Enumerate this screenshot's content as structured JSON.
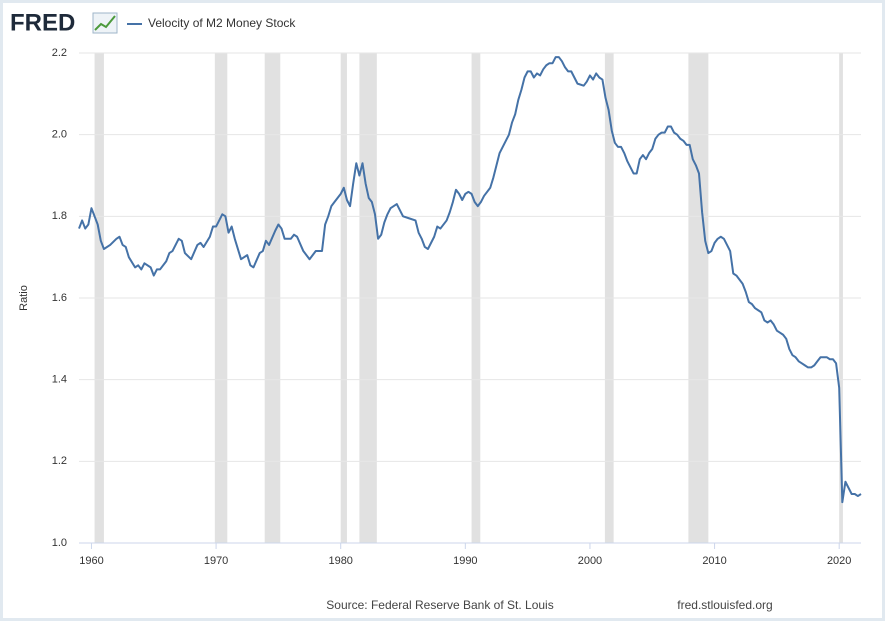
{
  "logo": "FRED",
  "chart_data": {
    "type": "line",
    "x": [
      1959.0,
      1959.25,
      1959.5,
      1959.75,
      1960.0,
      1960.25,
      1960.5,
      1960.75,
      1961.0,
      1961.5,
      1962.0,
      1962.25,
      1962.5,
      1962.75,
      1963.0,
      1963.5,
      1963.75,
      1964.0,
      1964.25,
      1964.75,
      1965.0,
      1965.25,
      1965.5,
      1966.0,
      1966.25,
      1966.5,
      1966.75,
      1967.0,
      1967.25,
      1967.5,
      1968.0,
      1968.5,
      1968.75,
      1969.0,
      1969.5,
      1969.75,
      1970.0,
      1970.25,
      1970.5,
      1970.75,
      1971.0,
      1971.25,
      1971.5,
      1972.0,
      1972.5,
      1972.75,
      1973.0,
      1973.5,
      1973.75,
      1974.0,
      1974.25,
      1974.75,
      1975.0,
      1975.25,
      1975.5,
      1976.0,
      1976.25,
      1976.5,
      1977.0,
      1977.5,
      1977.75,
      1978.0,
      1978.5,
      1978.75,
      1979.0,
      1979.25,
      1979.5,
      1980.0,
      1980.25,
      1980.5,
      1980.75,
      1981.0,
      1981.25,
      1981.5,
      1981.75,
      1982.0,
      1982.25,
      1982.5,
      1982.75,
      1983.0,
      1983.25,
      1983.5,
      1983.75,
      1984.0,
      1984.5,
      1984.75,
      1985.0,
      1985.5,
      1986.0,
      1986.25,
      1986.5,
      1986.75,
      1987.0,
      1987.5,
      1987.75,
      1988.0,
      1988.5,
      1988.75,
      1989.0,
      1989.25,
      1989.5,
      1989.75,
      1990.0,
      1990.25,
      1990.5,
      1990.75,
      1991.0,
      1991.25,
      1991.5,
      1992.0,
      1992.25,
      1992.5,
      1992.75,
      1993.0,
      1993.25,
      1993.5,
      1993.75,
      1994.0,
      1994.25,
      1994.5,
      1994.75,
      1995.0,
      1995.25,
      1995.5,
      1995.75,
      1996.0,
      1996.25,
      1996.5,
      1996.75,
      1997.0,
      1997.25,
      1997.5,
      1997.75,
      1998.0,
      1998.25,
      1998.5,
      1998.75,
      1999.0,
      1999.5,
      1999.75,
      2000.0,
      2000.25,
      2000.5,
      2000.75,
      2001.0,
      2001.25,
      2001.5,
      2001.75,
      2002.0,
      2002.25,
      2002.5,
      2002.75,
      2003.0,
      2003.25,
      2003.5,
      2003.75,
      2004.0,
      2004.25,
      2004.5,
      2004.75,
      2005.0,
      2005.25,
      2005.5,
      2005.75,
      2006.0,
      2006.25,
      2006.5,
      2006.75,
      2007.0,
      2007.25,
      2007.5,
      2007.75,
      2008.0,
      2008.25,
      2008.5,
      2008.75,
      2009.0,
      2009.25,
      2009.5,
      2009.75,
      2010.0,
      2010.25,
      2010.5,
      2010.75,
      2011.0,
      2011.25,
      2011.5,
      2011.75,
      2012.0,
      2012.25,
      2012.5,
      2012.75,
      2013.0,
      2013.25,
      2013.5,
      2013.75,
      2014.0,
      2014.25,
      2014.5,
      2014.75,
      2015.0,
      2015.25,
      2015.5,
      2015.75,
      2016.0,
      2016.25,
      2016.5,
      2016.75,
      2017.0,
      2017.25,
      2017.5,
      2017.75,
      2018.0,
      2018.25,
      2018.5,
      2018.75,
      2019.0,
      2019.25,
      2019.5,
      2019.75,
      2020.0,
      2020.25,
      2020.5,
      2020.75,
      2021.0,
      2021.25,
      2021.5,
      2021.75
    ],
    "series": [
      {
        "name": "Velocity of M2 Money Stock",
        "color": "#4572a7",
        "values": [
          1.77,
          1.79,
          1.77,
          1.78,
          1.82,
          1.8,
          1.78,
          1.74,
          1.72,
          1.73,
          1.745,
          1.75,
          1.73,
          1.725,
          1.7,
          1.675,
          1.68,
          1.67,
          1.685,
          1.675,
          1.655,
          1.67,
          1.67,
          1.69,
          1.71,
          1.715,
          1.73,
          1.745,
          1.74,
          1.71,
          1.695,
          1.73,
          1.735,
          1.725,
          1.75,
          1.775,
          1.775,
          1.79,
          1.805,
          1.8,
          1.76,
          1.775,
          1.745,
          1.695,
          1.705,
          1.68,
          1.675,
          1.71,
          1.715,
          1.74,
          1.73,
          1.765,
          1.78,
          1.77,
          1.745,
          1.745,
          1.755,
          1.75,
          1.715,
          1.695,
          1.705,
          1.715,
          1.715,
          1.78,
          1.8,
          1.825,
          1.835,
          1.855,
          1.87,
          1.84,
          1.825,
          1.88,
          1.93,
          1.9,
          1.93,
          1.88,
          1.845,
          1.835,
          1.805,
          1.745,
          1.755,
          1.785,
          1.805,
          1.82,
          1.83,
          1.815,
          1.8,
          1.795,
          1.79,
          1.76,
          1.745,
          1.725,
          1.72,
          1.75,
          1.775,
          1.77,
          1.79,
          1.81,
          1.835,
          1.865,
          1.855,
          1.84,
          1.855,
          1.86,
          1.855,
          1.835,
          1.825,
          1.835,
          1.85,
          1.87,
          1.895,
          1.925,
          1.955,
          1.97,
          1.985,
          2.0,
          2.03,
          2.05,
          2.085,
          2.11,
          2.14,
          2.155,
          2.155,
          2.14,
          2.15,
          2.145,
          2.16,
          2.17,
          2.175,
          2.175,
          2.19,
          2.19,
          2.18,
          2.165,
          2.155,
          2.155,
          2.14,
          2.125,
          2.12,
          2.13,
          2.145,
          2.135,
          2.15,
          2.14,
          2.135,
          2.09,
          2.06,
          2.01,
          1.98,
          1.97,
          1.97,
          1.955,
          1.935,
          1.92,
          1.905,
          1.905,
          1.94,
          1.95,
          1.94,
          1.955,
          1.965,
          1.99,
          2.0,
          2.005,
          2.005,
          2.02,
          2.02,
          2.005,
          2.0,
          1.99,
          1.985,
          1.975,
          1.975,
          1.94,
          1.925,
          1.905,
          1.81,
          1.74,
          1.71,
          1.715,
          1.735,
          1.745,
          1.75,
          1.745,
          1.73,
          1.715,
          1.66,
          1.655,
          1.645,
          1.635,
          1.615,
          1.59,
          1.585,
          1.575,
          1.57,
          1.565,
          1.545,
          1.54,
          1.545,
          1.535,
          1.52,
          1.515,
          1.51,
          1.5,
          1.475,
          1.46,
          1.455,
          1.445,
          1.44,
          1.435,
          1.43,
          1.43,
          1.435,
          1.445,
          1.455,
          1.455,
          1.455,
          1.45,
          1.45,
          1.44,
          1.38,
          1.1,
          1.15,
          1.135,
          1.12,
          1.12,
          1.115,
          1.12
        ]
      }
    ],
    "recessions": [
      [
        1960.25,
        1961.0
      ],
      [
        1969.9,
        1970.9
      ],
      [
        1973.9,
        1975.15
      ],
      [
        1980.0,
        1980.5
      ],
      [
        1981.5,
        1982.9
      ],
      [
        1990.5,
        1991.2
      ],
      [
        2001.2,
        2001.9
      ],
      [
        2007.9,
        2009.5
      ],
      [
        2020.0,
        2020.3
      ]
    ],
    "recession_color": "#e1e1e1",
    "ylabel": "Ratio",
    "xlim": [
      1959,
      2021.75
    ],
    "xticks": [
      1960,
      1970,
      1980,
      1990,
      2000,
      2010,
      2020
    ],
    "ylim": [
      1.0,
      2.2
    ],
    "yticks": [
      {
        "value": 1.0,
        "label": "1.0"
      },
      1.2,
      1.4,
      1.6,
      1.8,
      {
        "value": 2.0,
        "label": "2.0"
      },
      2.2
    ],
    "grid": true,
    "source": "Source: Federal Reserve Bank of St. Louis",
    "url": "fred.stlouisfed.org"
  }
}
